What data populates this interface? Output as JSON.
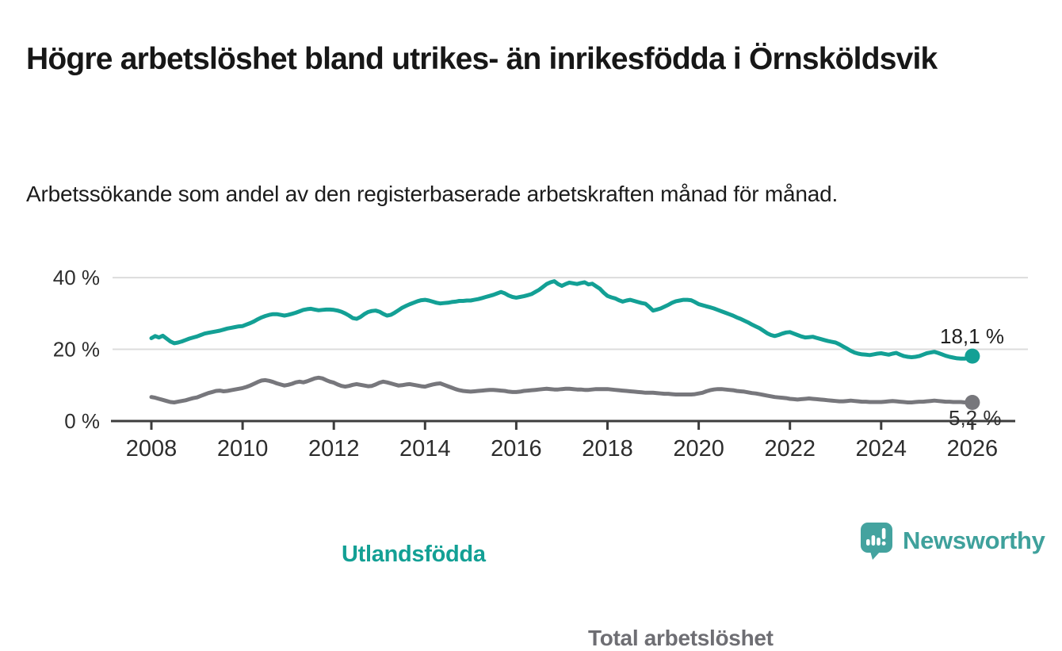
{
  "header": {
    "title": "Högre arbetslöshet bland utrikes- än inrikesfödda i Örnsköldsvik",
    "subtitle": "Arbetssökande som andel av den registerbaserade arbetskraften månad för månad."
  },
  "footer": {
    "brand": "Newsworthy",
    "logo_color": "#44a39f",
    "logo_icon": "speech-bubble-bar-chart"
  },
  "chart_data": {
    "type": "line",
    "title": "Högre arbetslöshet bland utrikes- än inrikesfödda i Örnsköldsvik",
    "xlabel": "",
    "ylabel": "",
    "x_start_year": 2008,
    "points_per_year": 12,
    "x_ticks": [
      2008,
      2010,
      2012,
      2014,
      2016,
      2018,
      2020,
      2022,
      2024,
      2026
    ],
    "y_ticks": [
      {
        "value": 0,
        "label": "0 %"
      },
      {
        "value": 20,
        "label": "20 %"
      },
      {
        "value": 40,
        "label": "40 %"
      }
    ],
    "ylim": [
      0,
      42
    ],
    "grid": "horizontal",
    "legend_position": "inline-labels",
    "colors": {
      "teal": "#13a095",
      "gray_line": "#77777c",
      "grid": "#dcdcdc",
      "axis": "#3d3d3d",
      "tick_text": "#2d2d2d"
    },
    "series": [
      {
        "name": "Utlandsfödda",
        "color": "#13a095",
        "end_label": "18,1 %",
        "end_value": 18.1,
        "values": [
          23.1,
          23.7,
          23.3,
          23.8,
          23.0,
          22.2,
          21.7,
          21.9,
          22.2,
          22.6,
          23.0,
          23.3,
          23.6,
          24.0,
          24.4,
          24.6,
          24.8,
          25.0,
          25.2,
          25.5,
          25.8,
          26.0,
          26.2,
          26.4,
          26.5,
          26.9,
          27.3,
          27.8,
          28.4,
          28.9,
          29.3,
          29.6,
          29.8,
          29.8,
          29.6,
          29.4,
          29.6,
          29.9,
          30.2,
          30.6,
          31.0,
          31.2,
          31.3,
          31.1,
          30.9,
          31.0,
          31.1,
          31.1,
          31.0,
          30.8,
          30.5,
          30.0,
          29.4,
          28.7,
          28.5,
          29.0,
          29.8,
          30.4,
          30.7,
          30.8,
          30.5,
          29.9,
          29.4,
          29.6,
          30.2,
          30.9,
          31.6,
          32.1,
          32.6,
          33.0,
          33.4,
          33.7,
          33.8,
          33.6,
          33.3,
          33.0,
          32.8,
          32.9,
          33.0,
          33.2,
          33.3,
          33.5,
          33.5,
          33.6,
          33.6,
          33.8,
          34.0,
          34.3,
          34.6,
          34.9,
          35.2,
          35.6,
          36.0,
          35.6,
          35.0,
          34.6,
          34.4,
          34.6,
          34.8,
          35.1,
          35.4,
          36.0,
          36.6,
          37.4,
          38.2,
          38.7,
          39.0,
          38.2,
          37.7,
          38.2,
          38.6,
          38.4,
          38.2,
          38.5,
          38.7,
          38.1,
          38.3,
          37.6,
          36.9,
          35.8,
          34.9,
          34.5,
          34.2,
          33.7,
          33.3,
          33.6,
          33.8,
          33.5,
          33.2,
          32.9,
          32.7,
          31.8,
          30.8,
          31.1,
          31.4,
          31.9,
          32.4,
          33.0,
          33.4,
          33.6,
          33.8,
          33.8,
          33.7,
          33.2,
          32.6,
          32.3,
          32.0,
          31.7,
          31.4,
          31.0,
          30.6,
          30.2,
          29.8,
          29.4,
          28.9,
          28.5,
          28.0,
          27.5,
          26.9,
          26.4,
          25.9,
          25.2,
          24.5,
          24.0,
          23.7,
          24.0,
          24.4,
          24.7,
          24.8,
          24.4,
          24.0,
          23.6,
          23.3,
          23.4,
          23.5,
          23.2,
          22.9,
          22.6,
          22.3,
          22.1,
          21.9,
          21.4,
          20.8,
          20.2,
          19.6,
          19.1,
          18.8,
          18.6,
          18.5,
          18.4,
          18.6,
          18.8,
          18.9,
          18.7,
          18.5,
          18.8,
          19.0,
          18.5,
          18.1,
          17.9,
          17.8,
          17.9,
          18.1,
          18.5,
          18.9,
          19.1,
          19.3,
          19.0,
          18.6,
          18.2,
          17.9,
          17.7,
          17.5,
          17.4,
          17.4,
          17.6,
          18.1
        ]
      },
      {
        "name": "Total arbetslöshet",
        "color": "#77777c",
        "end_label": "5,2 %",
        "end_value": 5.2,
        "values": [
          6.7,
          6.5,
          6.2,
          5.9,
          5.6,
          5.3,
          5.2,
          5.4,
          5.6,
          5.8,
          6.1,
          6.4,
          6.6,
          7.0,
          7.4,
          7.8,
          8.1,
          8.4,
          8.5,
          8.3,
          8.4,
          8.6,
          8.8,
          9.0,
          9.2,
          9.5,
          9.9,
          10.4,
          10.9,
          11.3,
          11.4,
          11.2,
          10.9,
          10.5,
          10.2,
          9.9,
          10.1,
          10.4,
          10.8,
          11.0,
          10.8,
          11.1,
          11.5,
          11.9,
          12.1,
          11.9,
          11.4,
          11.0,
          10.7,
          10.2,
          9.8,
          9.6,
          9.8,
          10.1,
          10.3,
          10.1,
          9.9,
          9.7,
          9.8,
          10.2,
          10.7,
          11.0,
          10.8,
          10.5,
          10.2,
          9.9,
          10.0,
          10.2,
          10.3,
          10.1,
          9.9,
          9.7,
          9.6,
          9.9,
          10.2,
          10.4,
          10.5,
          10.1,
          9.7,
          9.3,
          8.9,
          8.6,
          8.4,
          8.3,
          8.2,
          8.3,
          8.4,
          8.5,
          8.6,
          8.7,
          8.7,
          8.6,
          8.5,
          8.4,
          8.2,
          8.1,
          8.1,
          8.2,
          8.4,
          8.5,
          8.6,
          8.7,
          8.8,
          8.9,
          9.0,
          8.9,
          8.8,
          8.8,
          8.9,
          9.0,
          9.0,
          8.9,
          8.8,
          8.8,
          8.7,
          8.7,
          8.8,
          8.9,
          8.9,
          8.9,
          8.9,
          8.8,
          8.7,
          8.6,
          8.5,
          8.4,
          8.3,
          8.2,
          8.1,
          8.0,
          7.9,
          7.9,
          7.9,
          7.8,
          7.7,
          7.6,
          7.6,
          7.5,
          7.4,
          7.4,
          7.4,
          7.4,
          7.4,
          7.5,
          7.7,
          7.9,
          8.3,
          8.6,
          8.8,
          8.9,
          8.9,
          8.8,
          8.7,
          8.6,
          8.4,
          8.3,
          8.2,
          8.0,
          7.8,
          7.7,
          7.5,
          7.3,
          7.1,
          6.9,
          6.7,
          6.6,
          6.5,
          6.4,
          6.2,
          6.1,
          6.0,
          6.1,
          6.2,
          6.3,
          6.2,
          6.1,
          6.0,
          5.9,
          5.8,
          5.7,
          5.6,
          5.5,
          5.5,
          5.6,
          5.7,
          5.6,
          5.5,
          5.4,
          5.4,
          5.3,
          5.3,
          5.3,
          5.3,
          5.4,
          5.5,
          5.6,
          5.5,
          5.4,
          5.3,
          5.2,
          5.2,
          5.3,
          5.4,
          5.4,
          5.5,
          5.6,
          5.7,
          5.6,
          5.5,
          5.4,
          5.4,
          5.3,
          5.3,
          5.3,
          5.2,
          5.2,
          5.2
        ]
      }
    ]
  }
}
